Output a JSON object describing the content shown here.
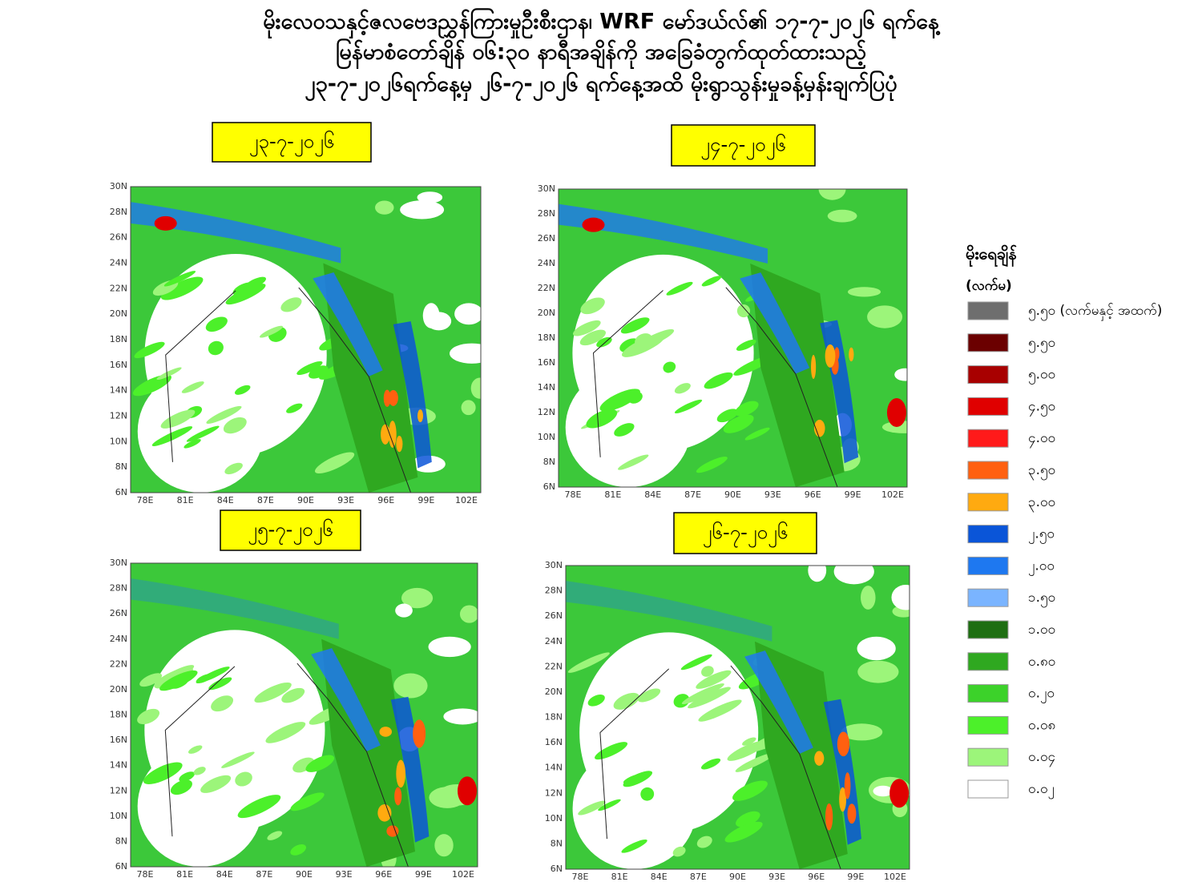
{
  "header": {
    "title_lines": [
      "မိုးလေဝသနှင့်ဇလဗေဒညွှန်ကြားမှုဦးစီးဌာန၊ WRF မော်ဒယ်လ်၏ ၁၇-၇-၂၀၂၆ ရက်နေ့",
      "မြန်မာစံတော်ချိန် ၀၆:၃၀ နာရီအချိန်ကို အခြေခံတွက်ထုတ်ထားသည့်",
      "၂၃-၇-၂၀၂၆ရက်နေ့မှ ၂၆-၇-၂၀၂၆ ရက်နေ့အထိ မိုးရွာသွန်းမှုခန့်မှန်းချက်ပြပုံ"
    ]
  },
  "map_axes": {
    "lat_labels": [
      "30N",
      "28N",
      "26N",
      "24N",
      "22N",
      "20N",
      "18N",
      "16N",
      "14N",
      "12N",
      "10N",
      "8N",
      "6N"
    ],
    "lon_labels": [
      "78E",
      "81E",
      "84E",
      "87E",
      "90E",
      "93E",
      "96E",
      "99E",
      "102E"
    ]
  },
  "panels": [
    {
      "date": "၂၃-၇-၂၀၂၆"
    },
    {
      "date": "၂၄-၇-၂၀၂၆"
    },
    {
      "date": "၂၅-၇-၂၀၂၆"
    },
    {
      "date": "၂၆-၇-၂၀၂၆"
    }
  ],
  "legend": {
    "title": "မိုးရေချိန်",
    "unit": "(လက်မ)",
    "items": [
      {
        "label": "၅.၅၀ (လက်မနှင့် အထက်)",
        "color": "#6e6e6e"
      },
      {
        "label": "၅.၅၀",
        "color": "#6b0000"
      },
      {
        "label": "၅.၀၀",
        "color": "#a80000"
      },
      {
        "label": "၄.၅၀",
        "color": "#e00000"
      },
      {
        "label": "၄.၀၀",
        "color": "#ff1a1a"
      },
      {
        "label": "၃.၅၀",
        "color": "#ff6010"
      },
      {
        "label": "၃.၀၀",
        "color": "#ffaa10"
      },
      {
        "label": "၂.၅၀",
        "color": "#0a55d8"
      },
      {
        "label": "၂.၀၀",
        "color": "#1e78f0"
      },
      {
        "label": "၁.၅၀",
        "color": "#7ab4ff"
      },
      {
        "label": "၁.၀၀",
        "color": "#1e6e12"
      },
      {
        "label": "၀.၈၀",
        "color": "#2fa820"
      },
      {
        "label": "၀.၂၀",
        "color": "#3cd22a"
      },
      {
        "label": "၀.၀၈",
        "color": "#4cf02a"
      },
      {
        "label": "၀.၀၄",
        "color": "#9cf57a"
      },
      {
        "label": "၀.၀၂",
        "color": "#ffffff"
      }
    ]
  }
}
